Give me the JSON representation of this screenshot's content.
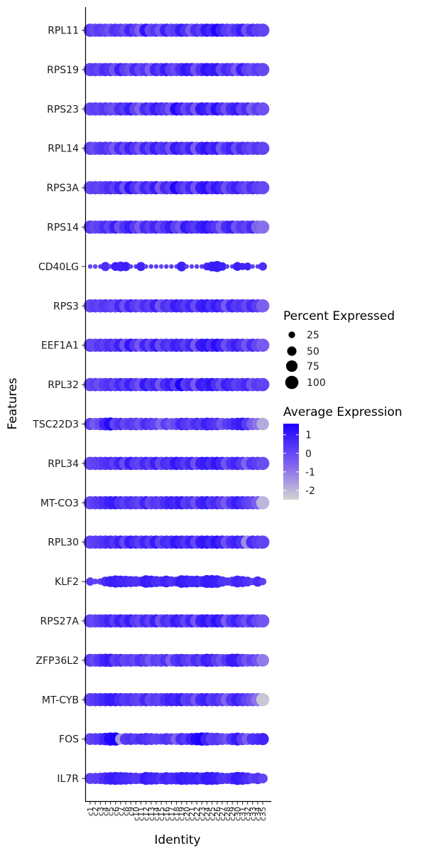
{
  "chart_data": {
    "type": "dotplot",
    "xlabel": "Identity",
    "ylabel": "Features",
    "features": [
      "RPL11",
      "RPS19",
      "RPS23",
      "RPL14",
      "RPS3A",
      "RPS14",
      "CD40LG",
      "RPS3",
      "EEF1A1",
      "RPL32",
      "TSC22D3",
      "RPL34",
      "MT-CO3",
      "RPL30",
      "KLF2",
      "RPS27A",
      "ZFP36L2",
      "MT-CYB",
      "FOS",
      "IL7R"
    ],
    "identities": [
      "c1",
      "c2",
      "c3",
      "c4",
      "c5",
      "c6",
      "c7",
      "c8",
      "c9",
      "c10",
      "c11",
      "c12",
      "c13",
      "c14",
      "c15",
      "c16",
      "c17",
      "c18",
      "c19",
      "c20",
      "c21",
      "c22",
      "c23",
      "c24",
      "c25",
      "c26",
      "c27",
      "c28",
      "c29",
      "c30",
      "c31",
      "c32",
      "c33",
      "c34",
      "c35"
    ],
    "legend_size": {
      "title": "Percent Expressed",
      "values": [
        25,
        50,
        75,
        100
      ],
      "labels": [
        "25",
        "50",
        "75",
        "100"
      ]
    },
    "legend_color": {
      "title": "Average Expression",
      "range": [
        -2.5,
        1.6
      ],
      "ticks": [
        1,
        0,
        -1,
        -2
      ],
      "labels": [
        "1",
        "0",
        "-1",
        "-2"
      ],
      "low_color": "#d3d3d3",
      "high_color": "#1b00ff"
    },
    "layers": [
      {
        "feature": "RPL11",
        "pct": 100,
        "expr": [
          0.2,
          0.0,
          0.3,
          0.1,
          -0.2,
          0.5,
          0.3,
          -0.1,
          0.8,
          0.2,
          -0.5,
          1.2,
          0.0,
          0.4,
          -0.3,
          0.9,
          0.1,
          0.3,
          1.0,
          0.5,
          -0.4,
          0.6,
          0.2,
          1.1,
          0.7,
          1.5,
          0.8,
          0.3,
          0.0,
          0.5,
          1.0,
          -0.2,
          0.6,
          0.2,
          0.1
        ]
      },
      {
        "feature": "RPS19",
        "pct": 100,
        "expr": [
          0.1,
          0.3,
          0.0,
          0.6,
          0.4,
          -0.3,
          0.9,
          0.2,
          -0.2,
          0.7,
          0.0,
          0.4,
          -0.5,
          0.8,
          0.3,
          1.0,
          0.2,
          -0.1,
          0.6,
          1.1,
          0.8,
          -0.3,
          0.5,
          1.2,
          0.9,
          1.1,
          0.0,
          0.7,
          0.4,
          -0.4,
          1.0,
          0.2,
          -0.1,
          0.3,
          0.0
        ]
      },
      {
        "feature": "RPS23",
        "pct": 100,
        "expr": [
          0.0,
          0.2,
          0.1,
          0.4,
          0.0,
          -0.2,
          0.6,
          0.3,
          1.0,
          0.1,
          -0.6,
          0.7,
          0.2,
          1.0,
          0.5,
          0.3,
          -0.3,
          1.4,
          0.8,
          0.0,
          0.6,
          -0.4,
          1.1,
          0.9,
          0.2,
          1.3,
          0.5,
          -0.2,
          0.7,
          1.0,
          0.1,
          0.6,
          -0.5,
          0.2,
          -0.2
        ]
      },
      {
        "feature": "RPL14",
        "pct": 100,
        "expr": [
          0.1,
          -0.1,
          0.3,
          0.5,
          0.2,
          -0.4,
          0.7,
          0.0,
          0.9,
          0.4,
          -0.3,
          0.8,
          0.1,
          1.0,
          0.3,
          0.6,
          -0.2,
          1.1,
          0.7,
          0.2,
          0.9,
          -0.5,
          0.8,
          1.2,
          0.6,
          1.0,
          -0.3,
          0.5,
          0.9,
          -0.1,
          0.7,
          0.3,
          0.0,
          0.4,
          0.1
        ]
      },
      {
        "feature": "RPS3A",
        "pct": 100,
        "expr": [
          0.0,
          0.2,
          0.1,
          0.3,
          0.6,
          0.2,
          0.9,
          -0.3,
          1.2,
          0.5,
          -0.2,
          0.8,
          0.3,
          1.0,
          -0.4,
          0.7,
          0.2,
          1.5,
          0.6,
          0.1,
          0.8,
          -0.3,
          1.0,
          1.3,
          0.4,
          1.1,
          0.7,
          -0.2,
          0.5,
          0.9,
          0.3,
          -0.1,
          0.6,
          0.2,
          0.0
        ]
      },
      {
        "feature": "RPS14",
        "pct": 100,
        "expr": [
          0.3,
          0.0,
          0.2,
          0.6,
          0.1,
          0.9,
          -0.2,
          0.5,
          1.0,
          0.3,
          -0.4,
          0.7,
          0.2,
          0.8,
          0.0,
          0.5,
          1.0,
          0.2,
          -0.3,
          1.1,
          0.6,
          0.3,
          0.9,
          1.2,
          0.7,
          0.4,
          -0.5,
          0.6,
          0.9,
          -0.2,
          0.4,
          0.1,
          0.7,
          -0.6,
          -0.8
        ]
      },
      {
        "feature": "CD40LG",
        "pct_values": [
          12,
          12,
          12,
          48,
          12,
          45,
          55,
          50,
          12,
          12,
          48,
          12,
          12,
          12,
          12,
          12,
          12,
          12,
          55,
          12,
          12,
          12,
          12,
          35,
          55,
          70,
          42,
          12,
          12,
          45,
          30,
          35,
          12,
          12,
          40
        ],
        "expr": [
          0.0,
          0.1,
          0.2,
          0.6,
          0.1,
          0.9,
          0.8,
          0.9,
          0.2,
          0.2,
          0.8,
          0.1,
          0.2,
          0.1,
          0.0,
          0.2,
          0.2,
          0.1,
          0.9,
          0.2,
          0.1,
          0.2,
          0.3,
          0.8,
          1.0,
          1.0,
          0.9,
          0.1,
          0.2,
          0.9,
          0.8,
          0.8,
          0.1,
          0.2,
          0.6
        ]
      },
      {
        "feature": "RPS3",
        "pct": 100,
        "expr": [
          0.0,
          0.3,
          0.1,
          0.4,
          0.2,
          0.0,
          0.7,
          -0.2,
          0.8,
          0.3,
          0.0,
          0.6,
          0.2,
          0.9,
          -0.3,
          0.5,
          0.2,
          1.0,
          0.7,
          0.3,
          0.8,
          -0.1,
          0.9,
          1.1,
          0.5,
          1.0,
          0.6,
          -0.4,
          0.8,
          0.3,
          0.5,
          0.0,
          0.7,
          0.2,
          -0.5
        ]
      },
      {
        "feature": "EEF1A1",
        "pct": 100,
        "expr": [
          0.1,
          0.0,
          0.4,
          0.2,
          0.6,
          0.3,
          0.9,
          -0.2,
          1.1,
          0.4,
          -0.3,
          0.8,
          0.1,
          1.0,
          -0.1,
          0.6,
          0.3,
          0.9,
          0.7,
          0.2,
          0.8,
          -0.4,
          1.0,
          1.2,
          0.6,
          1.3,
          0.8,
          -0.2,
          0.5,
          0.9,
          0.4,
          -0.3,
          0.6,
          0.0,
          -0.4
        ]
      },
      {
        "feature": "RPL32",
        "pct": 100,
        "expr": [
          0.0,
          0.2,
          -0.1,
          0.3,
          0.5,
          0.1,
          0.7,
          0.2,
          0.9,
          0.3,
          -0.2,
          1.1,
          0.4,
          0.8,
          -0.3,
          0.6,
          1.0,
          0.2,
          1.6,
          0.3,
          0.7,
          -0.4,
          1.0,
          0.8,
          1.2,
          0.5,
          -0.1,
          0.9,
          0.6,
          0.2,
          0.4,
          0.7,
          -0.2,
          0.3,
          0.1
        ]
      },
      {
        "feature": "TSC22D3",
        "pct_values": [
          85,
          85,
          90,
          95,
          98,
          90,
          88,
          85,
          90,
          92,
          90,
          85,
          88,
          85,
          80,
          85,
          80,
          85,
          90,
          92,
          85,
          90,
          88,
          95,
          92,
          90,
          85,
          80,
          85,
          90,
          95,
          90,
          85,
          85,
          90
        ],
        "expr": [
          0.2,
          -0.4,
          0.0,
          0.8,
          1.4,
          0.1,
          0.6,
          0.0,
          0.4,
          0.2,
          -0.2,
          0.6,
          0.3,
          0.1,
          -0.6,
          0.2,
          -0.3,
          0.0,
          0.7,
          0.4,
          0.1,
          0.6,
          0.3,
          0.9,
          0.6,
          0.4,
          -0.3,
          0.2,
          0.5,
          0.8,
          1.0,
          0.3,
          -0.5,
          -0.9,
          -1.8
        ]
      },
      {
        "feature": "RPL34",
        "pct": 100,
        "expr": [
          0.0,
          0.1,
          0.2,
          0.4,
          0.6,
          0.2,
          0.8,
          -0.1,
          1.0,
          0.3,
          0.1,
          0.7,
          0.2,
          0.9,
          0.0,
          0.6,
          0.4,
          1.1,
          0.7,
          0.3,
          0.8,
          -0.2,
          0.9,
          1.0,
          0.6,
          1.1,
          0.7,
          -0.3,
          0.5,
          0.8,
          0.3,
          -0.6,
          0.4,
          0.2,
          -0.1
        ]
      },
      {
        "feature": "MT-CO3",
        "pct": 100,
        "expr": [
          0.0,
          0.2,
          0.4,
          0.6,
          0.9,
          1.0,
          0.5,
          0.2,
          0.6,
          0.3,
          0.1,
          0.8,
          0.0,
          0.4,
          0.2,
          0.6,
          0.9,
          0.7,
          1.0,
          0.3,
          0.5,
          -0.2,
          0.8,
          1.0,
          0.4,
          0.7,
          0.2,
          -0.4,
          0.5,
          1.0,
          0.6,
          0.2,
          0.0,
          -0.5,
          -2.0
        ]
      },
      {
        "feature": "RPL30",
        "pct": 100,
        "expr": [
          0.1,
          0.2,
          0.3,
          0.5,
          0.7,
          0.4,
          0.9,
          0.0,
          1.0,
          0.6,
          0.2,
          0.8,
          0.3,
          1.0,
          0.1,
          0.7,
          0.5,
          1.1,
          0.8,
          0.4,
          0.9,
          0.0,
          1.0,
          1.1,
          0.7,
          1.2,
          0.8,
          -0.2,
          0.6,
          0.9,
          0.5,
          -1.3,
          0.6,
          0.3,
          0.1
        ]
      },
      {
        "feature": "KLF2",
        "pct_values": [
          40,
          20,
          25,
          55,
          70,
          85,
          80,
          75,
          70,
          65,
          55,
          90,
          80,
          70,
          60,
          80,
          60,
          55,
          90,
          85,
          75,
          80,
          70,
          95,
          95,
          90,
          60,
          40,
          55,
          80,
          70,
          55,
          30,
          60,
          30
        ],
        "expr": [
          0.3,
          0.1,
          0.2,
          0.6,
          0.9,
          0.9,
          0.8,
          0.7,
          0.6,
          0.5,
          0.5,
          1.0,
          0.9,
          0.6,
          0.5,
          0.8,
          0.5,
          0.6,
          1.0,
          0.9,
          0.7,
          0.8,
          0.6,
          1.0,
          1.0,
          0.9,
          0.5,
          0.4,
          0.4,
          0.8,
          0.7,
          0.5,
          0.2,
          0.6,
          0.2
        ]
      },
      {
        "feature": "RPS27A",
        "pct": 100,
        "expr": [
          0.1,
          0.0,
          0.3,
          0.5,
          0.8,
          0.2,
          0.9,
          0.4,
          1.0,
          0.3,
          0.0,
          0.7,
          0.2,
          0.9,
          -0.2,
          0.6,
          0.3,
          1.0,
          0.7,
          0.1,
          0.8,
          -0.3,
          0.9,
          1.1,
          0.6,
          1.2,
          0.8,
          -0.4,
          0.5,
          0.9,
          0.3,
          -0.2,
          0.6,
          0.0,
          -0.3
        ]
      },
      {
        "feature": "ZFP36L2",
        "pct_values": [
          95,
          95,
          98,
          100,
          100,
          95,
          95,
          92,
          95,
          90,
          95,
          95,
          92,
          90,
          95,
          92,
          90,
          95,
          95,
          92,
          90,
          95,
          90,
          100,
          98,
          95,
          92,
          90,
          100,
          100,
          95,
          92,
          90,
          90,
          92
        ],
        "expr": [
          0.2,
          0.0,
          0.4,
          0.8,
          1.0,
          0.2,
          0.5,
          0.0,
          0.2,
          0.0,
          0.5,
          0.2,
          -0.3,
          0.2,
          0.0,
          0.5,
          -0.5,
          0.4,
          0.7,
          0.3,
          0.0,
          0.6,
          0.2,
          0.9,
          0.7,
          0.2,
          -0.2,
          0.4,
          1.0,
          1.0,
          0.3,
          -0.3,
          0.1,
          -0.3,
          -1.0
        ]
      },
      {
        "feature": "MT-CYB",
        "pct": 100,
        "expr": [
          0.1,
          0.3,
          0.5,
          0.7,
          1.0,
          1.0,
          0.6,
          0.3,
          0.5,
          0.2,
          0.1,
          0.7,
          0.0,
          0.3,
          0.1,
          0.6,
          0.9,
          0.7,
          1.0,
          0.2,
          0.4,
          -0.3,
          0.7,
          0.9,
          0.3,
          0.6,
          0.2,
          -0.6,
          0.4,
          0.9,
          0.5,
          0.1,
          -0.3,
          -0.9,
          -2.3
        ]
      },
      {
        "feature": "FOS",
        "pct_values": [
          80,
          80,
          82,
          90,
          100,
          100,
          70,
          80,
          80,
          75,
          75,
          85,
          80,
          75,
          70,
          80,
          75,
          80,
          85,
          80,
          85,
          90,
          100,
          100,
          92,
          90,
          80,
          75,
          85,
          95,
          85,
          80,
          80,
          80,
          85
        ],
        "expr": [
          0.0,
          0.2,
          0.4,
          0.8,
          1.4,
          1.6,
          -1.5,
          0.3,
          0.5,
          0.2,
          0.6,
          0.5,
          0.3,
          0.1,
          0.2,
          0.5,
          0.3,
          -0.6,
          0.6,
          0.3,
          0.9,
          1.4,
          1.6,
          0.8,
          0.2,
          0.4,
          0.1,
          -0.3,
          0.5,
          1.0,
          0.2,
          -0.5,
          0.5,
          0.6,
          0.8
        ]
      },
      {
        "feature": "IL7R",
        "pct_values": [
          70,
          72,
          75,
          85,
          90,
          95,
          92,
          88,
          80,
          75,
          70,
          95,
          90,
          85,
          75,
          90,
          82,
          85,
          95,
          92,
          88,
          90,
          80,
          98,
          95,
          90,
          75,
          70,
          80,
          98,
          92,
          80,
          60,
          75,
          55
        ],
        "expr": [
          0.2,
          0.2,
          0.3,
          0.6,
          0.9,
          1.0,
          0.8,
          0.7,
          0.6,
          0.4,
          0.4,
          1.0,
          0.8,
          0.7,
          0.4,
          0.8,
          0.6,
          0.7,
          1.0,
          0.9,
          0.8,
          0.9,
          0.6,
          1.0,
          1.0,
          0.9,
          0.5,
          0.4,
          0.6,
          1.0,
          0.9,
          0.6,
          0.2,
          0.4,
          0.1
        ]
      }
    ]
  }
}
